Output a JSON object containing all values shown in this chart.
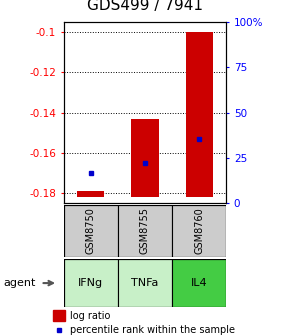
{
  "title": "GDS499 / 7941",
  "samples": [
    "GSM8750",
    "GSM8755",
    "GSM8760"
  ],
  "agents": [
    "IFNg",
    "TNFa",
    "IL4"
  ],
  "agent_colors": [
    "#c8f0c8",
    "#c8f0c8",
    "#44cc44"
  ],
  "sample_bg": "#cccccc",
  "ylim_left": [
    -0.185,
    -0.095
  ],
  "yticks_left": [
    -0.18,
    -0.16,
    -0.14,
    -0.12,
    -0.1
  ],
  "ytick_labels_left": [
    "-0.18",
    "-0.16",
    "-0.14",
    "-0.12",
    "-0.1"
  ],
  "ylim_right": [
    0,
    100
  ],
  "yticks_right": [
    0,
    25,
    50,
    75,
    100
  ],
  "ytick_labels_right": [
    "0",
    "25",
    "50",
    "75",
    "100%"
  ],
  "bar_bottoms": [
    -0.182,
    -0.182,
    -0.182
  ],
  "bar_tops": [
    -0.179,
    -0.143,
    -0.1
  ],
  "bar_color": "#cc0000",
  "percentile_values": [
    -0.17,
    -0.165,
    -0.153
  ],
  "percentile_color": "#0000cc",
  "x_positions": [
    1,
    2,
    3
  ],
  "bar_width": 0.5,
  "title_fontsize": 11,
  "tick_fontsize": 7.5,
  "sample_fontsize": 7,
  "agent_fontsize": 8,
  "legend_fontsize": 7
}
